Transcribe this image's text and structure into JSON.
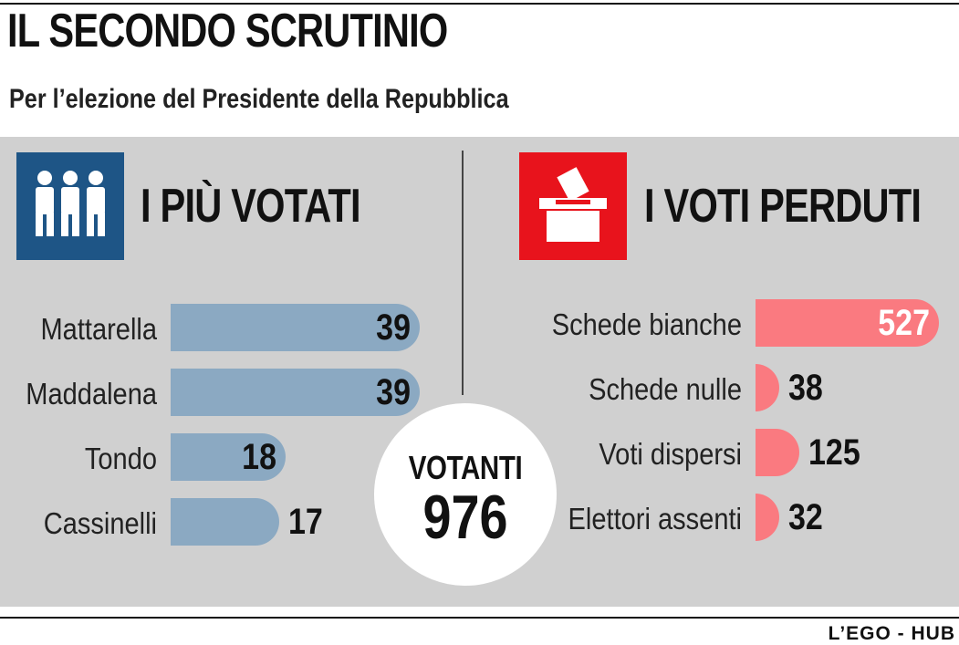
{
  "header": {
    "title": "IL SECONDO SCRUTINIO",
    "subtitle": "Per l’elezione del Presidente della Repubblica"
  },
  "colors": {
    "blue_icon": "#1e5586",
    "blue_bar": "#8ba9c2",
    "red_icon": "#e8131c",
    "pink_bar": "#fa7a80",
    "panel": "#d0d0d0"
  },
  "icons": {
    "left": "people-icon",
    "right": "ballot-box-icon"
  },
  "chart_data": [
    {
      "type": "bar",
      "orientation": "horizontal",
      "title": "I PIÙ VOTATI",
      "categories": [
        "Mattarella",
        "Maddalena",
        "Tondo",
        "Cassinelli"
      ],
      "values": [
        39,
        39,
        18,
        17
      ]
    },
    {
      "type": "bar",
      "orientation": "horizontal",
      "title": "I VOTI PERDUTI",
      "categories": [
        "Schede bianche",
        "Schede nulle",
        "Voti dispersi",
        "Elettori assenti"
      ],
      "values": [
        527,
        38,
        125,
        32
      ]
    }
  ],
  "votanti": {
    "label": "VOTANTI",
    "value": "976"
  },
  "footer": {
    "credit": "L’EGO - HUB"
  }
}
